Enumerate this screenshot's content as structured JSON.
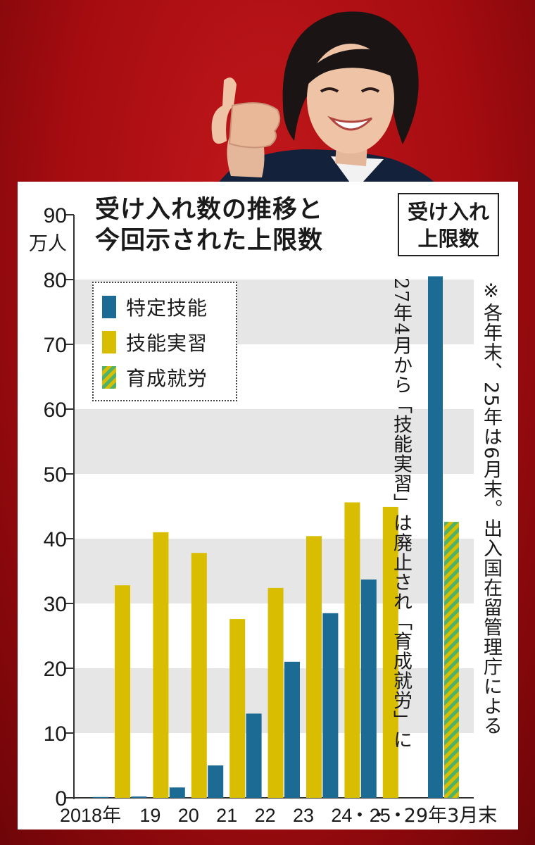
{
  "chart_data": {
    "type": "bar",
    "title": "受け入れ数の推移と今回示された上限数",
    "title_lines": [
      "受け入れ数の推移と",
      "今回示された上限数"
    ],
    "ylabel_lines": [
      "90",
      "万人"
    ],
    "ylim": [
      0,
      90
    ],
    "yticks": [
      "0",
      "10",
      "20",
      "30",
      "40",
      "50",
      "60",
      "70",
      "80"
    ],
    "grid": "horizontal alternating bands",
    "categories": [
      "2018年",
      "19",
      "20",
      "21",
      "22",
      "23",
      "24",
      "25"
    ],
    "series": [
      {
        "name": "特定技能",
        "color": "#1b6b94",
        "values": [
          0,
          0.2,
          1.6,
          5,
          13,
          21,
          28.5,
          33.7
        ]
      },
      {
        "name": "技能実習",
        "color": "#d8bd00",
        "values": [
          32.8,
          41,
          37.8,
          27.6,
          32.4,
          40.4,
          45.6,
          44.9
        ]
      }
    ],
    "separator_label": "・・・",
    "limit": {
      "label_lines": [
        "受け入れ",
        "上限数"
      ],
      "category": "29年3月末",
      "bars": [
        {
          "name": "特定技能",
          "value": 80.5,
          "pattern": "solid"
        },
        {
          "name": "育成就労",
          "value": 42.6,
          "pattern": "hatched"
        }
      ]
    },
    "legend": [
      {
        "name": "特定技能",
        "pattern": "solid",
        "color": "#1b6b94"
      },
      {
        "name": "技能実習",
        "pattern": "solid",
        "color": "#d8bd00"
      },
      {
        "name": "育成就労",
        "pattern": "hatched",
        "color": "#4fb26a"
      }
    ],
    "legend_position": "top-left",
    "annotation": "27年4月から「技能実習」は廃止され「育成就労」に",
    "footnote": "※各年末、25年は6月末。出入国在留管理庁による"
  }
}
